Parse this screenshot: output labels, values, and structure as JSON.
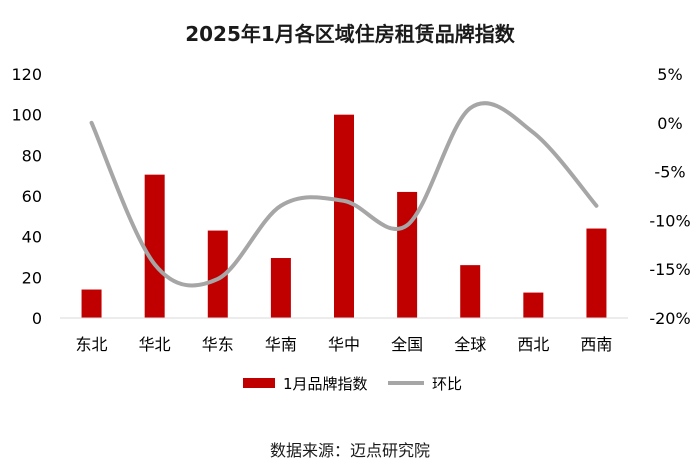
{
  "source_text": "数据来源：迈点研究院",
  "chart_data": {
    "type": "bar",
    "title": "2025年1月各区域住房租赁品牌指数",
    "categories": [
      "东北",
      "华北",
      "华东",
      "华南",
      "华中",
      "全国",
      "全球",
      "西北",
      "西南"
    ],
    "series": [
      {
        "name": "1月品牌指数",
        "type": "bar",
        "axis": "left",
        "color": "#c00000",
        "values": [
          14,
          70.5,
          43,
          29.5,
          100,
          62,
          26,
          12.5,
          44
        ]
      },
      {
        "name": "环比",
        "type": "line",
        "axis": "right",
        "smooth": true,
        "color": "#a6a6a6",
        "values": [
          0.0,
          -14.5,
          -16.0,
          -8.5,
          -8.0,
          -10.5,
          1.5,
          -1.0,
          -8.5
        ]
      }
    ],
    "y_left": {
      "min": 0,
      "max": 120,
      "step": 20,
      "ticks": [
        "0",
        "20",
        "40",
        "60",
        "80",
        "100",
        "120"
      ]
    },
    "y_right": {
      "min": -20,
      "max": 5,
      "step": 5,
      "ticks": [
        "-20%",
        "-15%",
        "-10%",
        "-5%",
        "0%",
        "5%"
      ]
    },
    "grid": false,
    "legend_position": "bottom"
  }
}
